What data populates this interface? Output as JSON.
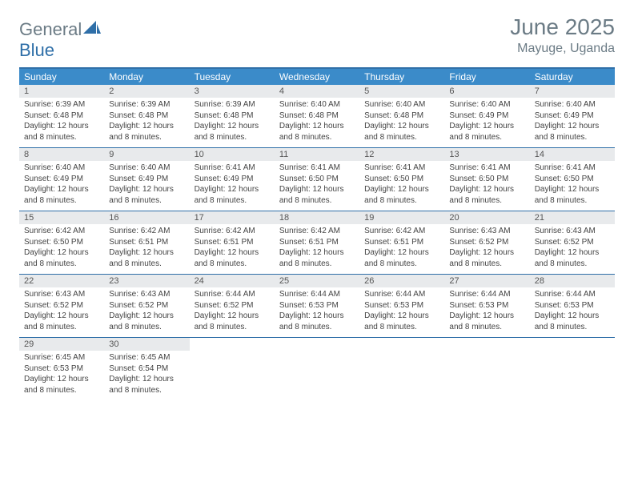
{
  "brand": {
    "partA": "General",
    "partB": "Blue"
  },
  "title": "June 2025",
  "location": "Mayuge, Uganda",
  "colors": {
    "header_bg": "#3b8bc9",
    "rule": "#2f6fa8",
    "daybar_bg": "#e8eaec",
    "text_gray": "#6b7b85"
  },
  "weekdays": [
    "Sunday",
    "Monday",
    "Tuesday",
    "Wednesday",
    "Thursday",
    "Friday",
    "Saturday"
  ],
  "labels": {
    "sunrise": "Sunrise:",
    "sunset": "Sunset:",
    "daylight_prefix": "Daylight:",
    "daylight_value": "12 hours and 8 minutes."
  },
  "days": [
    {
      "n": 1,
      "sr": "6:39 AM",
      "ss": "6:48 PM"
    },
    {
      "n": 2,
      "sr": "6:39 AM",
      "ss": "6:48 PM"
    },
    {
      "n": 3,
      "sr": "6:39 AM",
      "ss": "6:48 PM"
    },
    {
      "n": 4,
      "sr": "6:40 AM",
      "ss": "6:48 PM"
    },
    {
      "n": 5,
      "sr": "6:40 AM",
      "ss": "6:48 PM"
    },
    {
      "n": 6,
      "sr": "6:40 AM",
      "ss": "6:49 PM"
    },
    {
      "n": 7,
      "sr": "6:40 AM",
      "ss": "6:49 PM"
    },
    {
      "n": 8,
      "sr": "6:40 AM",
      "ss": "6:49 PM"
    },
    {
      "n": 9,
      "sr": "6:40 AM",
      "ss": "6:49 PM"
    },
    {
      "n": 10,
      "sr": "6:41 AM",
      "ss": "6:49 PM"
    },
    {
      "n": 11,
      "sr": "6:41 AM",
      "ss": "6:50 PM"
    },
    {
      "n": 12,
      "sr": "6:41 AM",
      "ss": "6:50 PM"
    },
    {
      "n": 13,
      "sr": "6:41 AM",
      "ss": "6:50 PM"
    },
    {
      "n": 14,
      "sr": "6:41 AM",
      "ss": "6:50 PM"
    },
    {
      "n": 15,
      "sr": "6:42 AM",
      "ss": "6:50 PM"
    },
    {
      "n": 16,
      "sr": "6:42 AM",
      "ss": "6:51 PM"
    },
    {
      "n": 17,
      "sr": "6:42 AM",
      "ss": "6:51 PM"
    },
    {
      "n": 18,
      "sr": "6:42 AM",
      "ss": "6:51 PM"
    },
    {
      "n": 19,
      "sr": "6:42 AM",
      "ss": "6:51 PM"
    },
    {
      "n": 20,
      "sr": "6:43 AM",
      "ss": "6:52 PM"
    },
    {
      "n": 21,
      "sr": "6:43 AM",
      "ss": "6:52 PM"
    },
    {
      "n": 22,
      "sr": "6:43 AM",
      "ss": "6:52 PM"
    },
    {
      "n": 23,
      "sr": "6:43 AM",
      "ss": "6:52 PM"
    },
    {
      "n": 24,
      "sr": "6:44 AM",
      "ss": "6:52 PM"
    },
    {
      "n": 25,
      "sr": "6:44 AM",
      "ss": "6:53 PM"
    },
    {
      "n": 26,
      "sr": "6:44 AM",
      "ss": "6:53 PM"
    },
    {
      "n": 27,
      "sr": "6:44 AM",
      "ss": "6:53 PM"
    },
    {
      "n": 28,
      "sr": "6:44 AM",
      "ss": "6:53 PM"
    },
    {
      "n": 29,
      "sr": "6:45 AM",
      "ss": "6:53 PM"
    },
    {
      "n": 30,
      "sr": "6:45 AM",
      "ss": "6:54 PM"
    }
  ]
}
